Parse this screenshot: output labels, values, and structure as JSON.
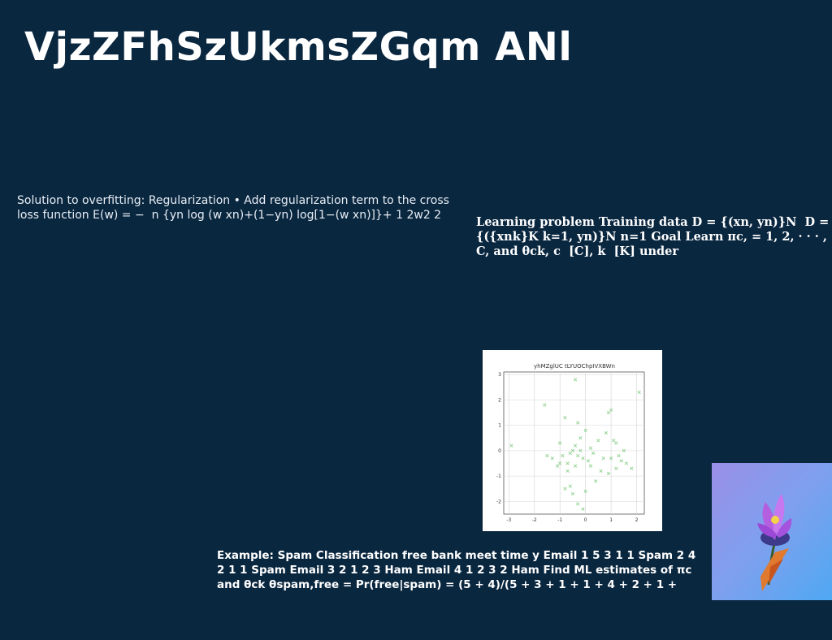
{
  "slide": {
    "title": "VjzZFhSzUkmsZGqm ANl",
    "text_left": "Solution to overfitting: Regularization • Add regularization term to the cross loss function E(w) = − ￼ n {yn log ￼(w ￼xn)+(1−yn) log[1−￼(w ￼xn)]}+ 1 2￼￼w￼2 2",
    "text_right": "Learning problem Training data D = {(xn, yn)}N ￼ D = {({xnk}K k=1, yn)}N n=1 Goal Learn πc, = 1, 2, · · · , C, and θck, ￼c ￼ [C], k ￼ [K] under",
    "text_bottom": "Example: Spam Classification free bank meet time y Email 1 5 3 1 1 Spam 2 4 2 1 1 Spam Email 3 2 1 2 3 Ham Email 4 1 2 3 2 Ham Find ML estimates of πc and θck θspam,free = Pr(free|spam) = (5 + 4)/(5 + 3 + 1 + 1 + 4 + 2 + 1 +"
  },
  "colors": {
    "background": "#0a2740",
    "marker": "#8fd18f"
  },
  "chart_data": {
    "type": "scatter",
    "title": "yhMZglUC tLYUOChpIVXBWn",
    "xlim": [
      -3.2,
      2.3
    ],
    "ylim": [
      -2.5,
      3.1
    ],
    "xticks": [
      -3,
      -2,
      -1,
      0,
      1,
      2
    ],
    "yticks": [
      -2,
      -1,
      0,
      1,
      2,
      3
    ],
    "grid": true,
    "marker": "x",
    "series": [
      {
        "x": [
          -2.9,
          -1.6,
          -0.4,
          2.1,
          -1.0,
          -0.8,
          -0.3,
          -0.2,
          0.0,
          -0.5,
          -0.7,
          -0.1,
          0.2,
          0.5,
          0.8,
          0.9,
          1.0,
          1.2,
          1.4,
          1.6,
          1.8,
          -1.5,
          -1.3,
          -1.1,
          -0.9,
          -0.6,
          -0.4,
          -0.3,
          -0.2,
          0.1,
          0.3,
          0.6,
          0.7,
          1.1,
          1.3,
          1.5,
          -0.8,
          -0.5,
          0.4,
          0.9,
          -0.3,
          -0.1,
          0.0,
          1.0,
          1.2,
          -1.0,
          -0.7,
          -0.6,
          0.2,
          -0.4
        ],
        "y": [
          0.2,
          1.8,
          2.8,
          2.3,
          0.3,
          1.3,
          1.1,
          0.5,
          0.8,
          0.0,
          -0.5,
          -0.3,
          -0.6,
          0.4,
          0.7,
          1.5,
          1.6,
          0.3,
          -0.4,
          -0.5,
          -0.7,
          -0.2,
          -0.3,
          -0.6,
          -0.2,
          -0.1,
          -0.6,
          -0.2,
          0.0,
          -0.4,
          -0.1,
          -0.8,
          -0.3,
          0.4,
          -0.2,
          0.0,
          -1.5,
          -1.7,
          -1.2,
          -0.9,
          -2.1,
          -2.3,
          -1.6,
          -0.3,
          -0.7,
          -0.5,
          -0.8,
          -1.4,
          0.1,
          0.2
        ]
      }
    ]
  }
}
